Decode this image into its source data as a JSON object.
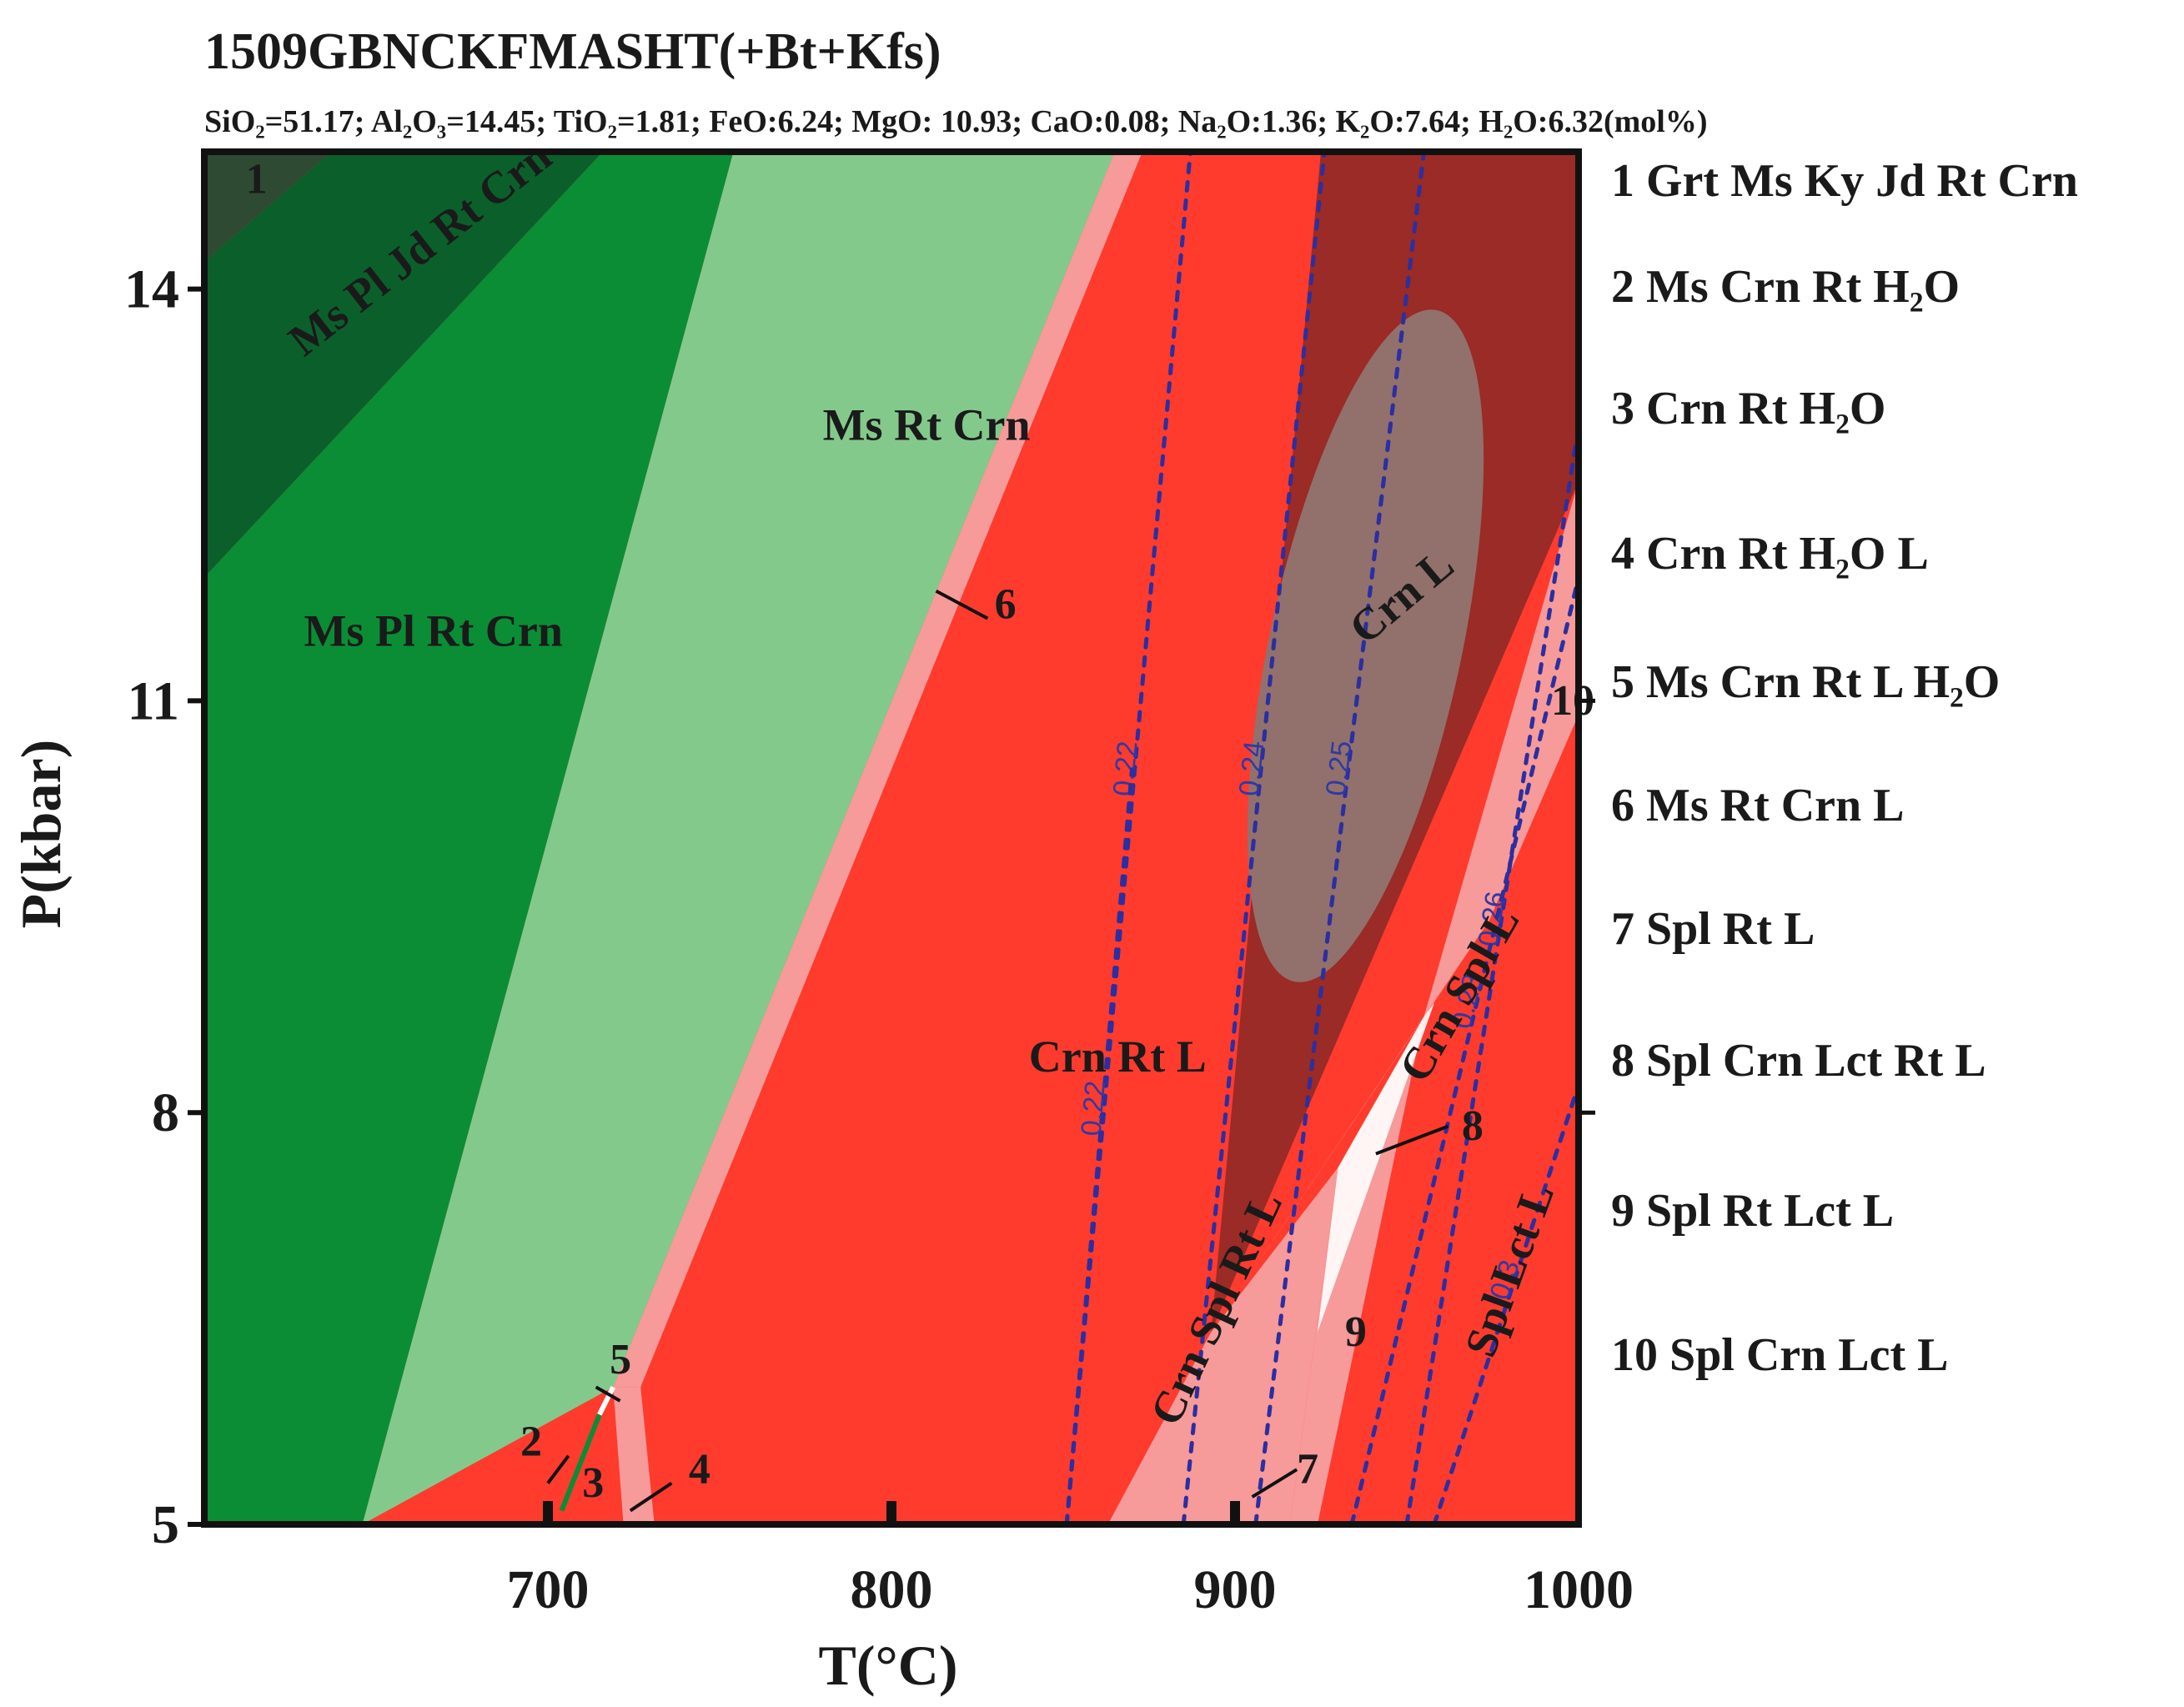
{
  "chart_data": {
    "type": "phase_diagram",
    "title": "1509GBNCKFMASHT(+Bt+Kfs)",
    "subtitle": "SiO₂=51.17; Al₂O₃=14.45; TiO₂=1.81; FeO:6.24; MgO: 10.93; CaO:0.08; Na₂O:1.36; K₂O:7.64; H₂O:6.32(mol%)",
    "xlabel": "T(°C)",
    "ylabel": "P(kbar)",
    "xlim": [
      600,
      1000
    ],
    "ylim": [
      5,
      15
    ],
    "x_ticks": [
      700,
      800,
      900,
      1000
    ],
    "y_ticks": [
      5,
      8,
      11,
      14
    ],
    "colors": {
      "dark_green": "#0b5f2b",
      "green": "#0a8d35",
      "light_green": "#84c98c",
      "red": "#ff3b2e",
      "pink": "#f79a9a",
      "dark_red": "#9a2b26",
      "taupe": "#92706c",
      "isopleth": "#2b2fa0"
    },
    "fields": [
      {
        "name": "Grt Ms Ky Jd Rt Crn",
        "label": "1",
        "polygon": [
          [
            600,
            15
          ],
          [
            637,
            15
          ],
          [
            600,
            14.2
          ]
        ]
      },
      {
        "name": "Ms Pl Jd Rt Crn",
        "label": "Ms  Pl Jd Rt Crn",
        "polygon": [
          [
            600,
            14.2
          ],
          [
            637,
            15
          ],
          [
            716,
            15
          ],
          [
            600,
            11.9
          ]
        ]
      },
      {
        "name": "Ms Pl Rt Crn",
        "label": "Ms  Pl Rt Crn",
        "polygon": [
          [
            600,
            11.9
          ],
          [
            716,
            15
          ],
          [
            754,
            15
          ],
          [
            646,
            5
          ],
          [
            600,
            5
          ]
        ]
      },
      {
        "name": "Ms Rt Crn",
        "label": "Ms  Rt Crn",
        "polygon": [
          [
            646,
            5
          ],
          [
            754,
            15
          ],
          [
            865,
            15
          ],
          [
            719,
            6
          ]
        ]
      },
      {
        "name": "Crn Rt L",
        "label": "Crn Rt L",
        "polygon": [
          [
            727,
            5
          ],
          [
            728,
            6
          ],
          [
            868,
            15
          ],
          [
            1000,
            15
          ],
          [
            1000,
            5
          ]
        ]
      },
      {
        "name": "Crn L",
        "label": "Crn  L",
        "polygon": [
          [
            925,
            15
          ],
          [
            1000,
            15
          ],
          [
            1000,
            12.6
          ],
          [
            893,
            6.4
          ]
        ]
      },
      {
        "name": "Crn Spl L",
        "label": "Crn Spl  L",
        "polygon": [
          [
            893,
            6.4
          ],
          [
            955,
            8.7
          ],
          [
            1000,
            12.6
          ],
          [
            1000,
            10.9
          ],
          [
            974,
            9.4
          ]
        ]
      },
      {
        "name": "Crn Spl Rt L",
        "label": "Crn Spl Rt L",
        "polygon": [
          [
            863,
            5
          ],
          [
            893,
            6.4
          ],
          [
            930,
            7.6
          ],
          [
            916,
            5
          ]
        ]
      },
      {
        "name": "Spl Rt Lct L",
        "label": "9",
        "polygon": [
          [
            916,
            5
          ],
          [
            930,
            7.6
          ],
          [
            955,
            8.7
          ],
          [
            924,
            5
          ]
        ]
      },
      {
        "name": "Spl Crn Lct L",
        "label": "10",
        "polygon": [
          [
            955,
            8.7
          ],
          [
            1000,
            11.6
          ],
          [
            1000,
            10.9
          ]
        ]
      },
      {
        "name": "Spl Lct L",
        "label": "Spl Lct L",
        "polygon": []
      }
    ],
    "highlight_ellipse": {
      "label": "Crn  L",
      "center": [
        938,
        11.4
      ],
      "rx_T": 28,
      "ry_P": 2.5
    },
    "isopleths": [
      {
        "label": "0.22",
        "points": [
          [
            851,
            5
          ],
          [
            887,
            15
          ]
        ]
      },
      {
        "label": "0.22",
        "points": [
          [
            851,
            5
          ],
          [
            870,
            10.5
          ]
        ]
      },
      {
        "label": "0.24",
        "points": [
          [
            885,
            5
          ],
          [
            926,
            15
          ]
        ]
      },
      {
        "label": "0.25",
        "points": [
          [
            906,
            5
          ],
          [
            955,
            15
          ]
        ]
      },
      {
        "label": "0.26",
        "points": [
          [
            950,
            5
          ],
          [
            1000,
            13
          ]
        ]
      },
      {
        "label": "0.28",
        "points": [
          [
            934,
            5
          ],
          [
            1000,
            11.9
          ]
        ]
      },
      {
        "label": "0.3",
        "points": [
          [
            958,
            5
          ],
          [
            1000,
            8.2
          ]
        ]
      }
    ],
    "legend": [
      {
        "num": "1",
        "text": "Grt Ms Ky Jd Rt Crn"
      },
      {
        "num": "2",
        "text": "Ms Crn Rt H₂O"
      },
      {
        "num": "3",
        "text": "Crn Rt H₂O"
      },
      {
        "num": "4",
        "text": "Crn Rt H₂O L"
      },
      {
        "num": "5",
        "text": "Ms Crn Rt L H₂O"
      },
      {
        "num": "6",
        "text": "Ms  Rt Crn L"
      },
      {
        "num": "7",
        "text": "Spl Rt L"
      },
      {
        "num": "8",
        "text": "Spl Crn Lct Rt L"
      },
      {
        "num": "9",
        "text": "Spl Rt Lct L"
      },
      {
        "num": "10",
        "text": "Spl Crn Lct L"
      }
    ],
    "field_labels": [
      {
        "text": "1",
        "at": [
          612,
          14.7
        ]
      },
      {
        "text": "Ms  Pl Jd Rt Crn",
        "at": [
          629,
          13.5
        ],
        "rotate": -38
      },
      {
        "text": "Ms  Pl Rt Crn",
        "at": [
          629,
          11.4
        ]
      },
      {
        "text": "Ms  Rt Crn",
        "at": [
          780,
          12.9
        ]
      },
      {
        "text": "Crn Rt L",
        "at": [
          840,
          8.3
        ]
      },
      {
        "text": "Crn  L",
        "at": [
          938,
          11.4
        ],
        "rotate": -40
      },
      {
        "text": "Crn Spl  L",
        "at": [
          955,
          8.2
        ],
        "rotate": -60
      },
      {
        "text": "Crn Spl Rt L",
        "at": [
          883,
          5.7
        ],
        "rotate": -65
      },
      {
        "text": "Spl Lct L",
        "at": [
          975,
          6.2
        ],
        "rotate": -70
      },
      {
        "text": "9",
        "at": [
          932,
          6.3
        ]
      },
      {
        "text": "10",
        "at": [
          992,
          10.9
        ]
      },
      {
        "text": "6",
        "at": [
          830,
          11.6
        ]
      },
      {
        "text": "8",
        "at": [
          966,
          7.8
        ]
      },
      {
        "text": "7",
        "at": [
          918,
          5.3
        ]
      },
      {
        "text": "5",
        "at": [
          718,
          6.1
        ]
      },
      {
        "text": "2",
        "at": [
          692,
          5.5
        ]
      },
      {
        "text": "3",
        "at": [
          710,
          5.2
        ]
      },
      {
        "text": "4",
        "at": [
          741,
          5.3
        ]
      }
    ]
  }
}
